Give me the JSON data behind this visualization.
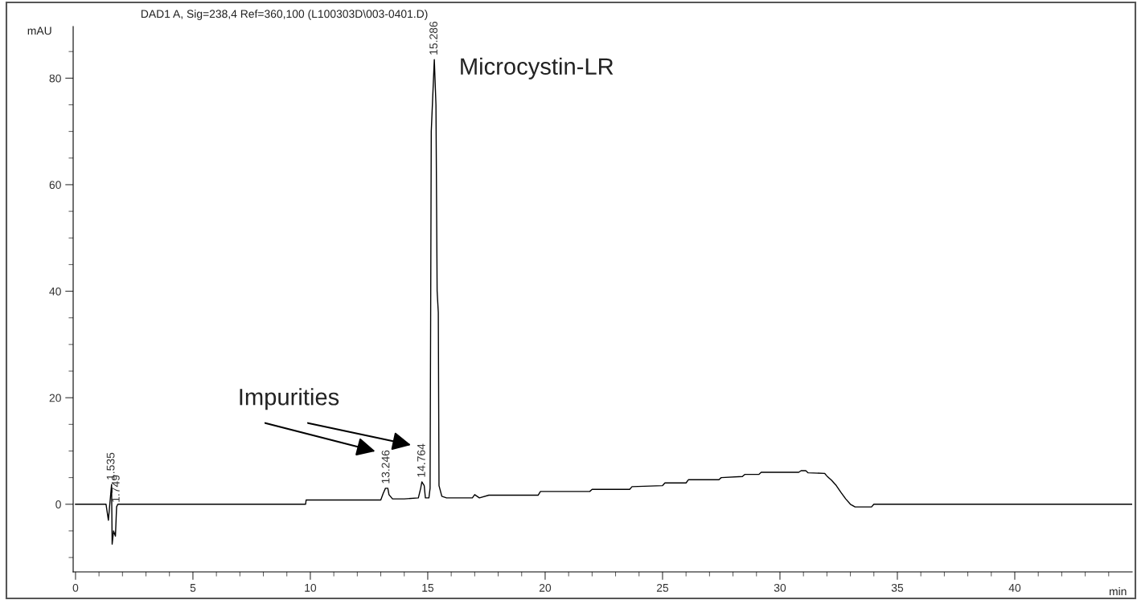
{
  "chart_data": {
    "type": "line",
    "title": "DAD1 A, Sig=238,4 Ref=360,100 (L100303D\\003-0401.D)",
    "xlabel": "min",
    "ylabel": "mAU",
    "x": [
      0,
      1.3,
      1.4,
      1.535,
      1.56,
      1.62,
      1.7,
      1.749,
      1.8,
      9.8,
      9.82,
      13.0,
      13.1,
      13.2,
      13.3,
      13.35,
      13.5,
      14.0,
      14.6,
      14.7,
      14.75,
      14.85,
      14.9,
      15.05,
      15.1,
      15.15,
      15.28,
      15.35,
      15.4,
      15.45,
      15.48,
      15.6,
      15.8,
      16.9,
      17.0,
      17.2,
      17.6,
      19.7,
      19.8,
      21.9,
      22.0,
      23.6,
      23.7,
      25.0,
      25.1,
      26.0,
      26.1,
      27.4,
      27.5,
      28.4,
      28.5,
      29.1,
      29.2,
      30.8,
      30.9,
      31.1,
      31.2,
      31.9,
      32.0,
      32.2,
      32.4,
      32.6,
      32.8,
      33.0,
      33.2,
      33.9,
      34.0,
      45
    ],
    "series": [
      {
        "color": "#000000",
        "values": [
          0,
          0,
          -3,
          3.7,
          -7.5,
          -5,
          -6,
          -0.5,
          0,
          0,
          0.8,
          0.8,
          2.0,
          3.0,
          3.0,
          1.8,
          1.0,
          1.0,
          1.2,
          3.0,
          4.2,
          3.5,
          1.2,
          1.2,
          3,
          70,
          83.5,
          75,
          40,
          36,
          3.5,
          1.5,
          1.2,
          1.2,
          1.8,
          1.2,
          1.7,
          1.7,
          2.4,
          2.4,
          2.8,
          2.8,
          3.3,
          3.5,
          4.0,
          4.0,
          4.6,
          4.6,
          5.0,
          5.2,
          5.6,
          5.6,
          6.0,
          6.0,
          6.3,
          6.3,
          5.9,
          5.8,
          5.3,
          4.5,
          3.5,
          2.2,
          1.0,
          0,
          -0.5,
          -0.5,
          0,
          0
        ]
      }
    ],
    "xlim": [
      -0.1,
      45
    ],
    "ylim": [
      -12.7,
      89.7
    ],
    "xticks": [
      0,
      {
        "value": 1,
        "label": null
      },
      {
        "value": 2,
        "label": null
      },
      {
        "value": 3,
        "label": null
      },
      {
        "value": 4,
        "label": null
      },
      5,
      {
        "value": 6,
        "label": null
      },
      {
        "value": 7,
        "label": null
      },
      {
        "value": 8,
        "label": null
      },
      {
        "value": 9,
        "label": null
      },
      10,
      {
        "value": 11,
        "label": null
      },
      {
        "value": 12,
        "label": null
      },
      {
        "value": 13,
        "label": null
      },
      {
        "value": 14,
        "label": null
      },
      15,
      {
        "value": 16,
        "label": null
      },
      {
        "value": 17,
        "label": null
      },
      {
        "value": 18,
        "label": null
      },
      {
        "value": 19,
        "label": null
      },
      20,
      {
        "value": 21,
        "label": null
      },
      {
        "value": 22,
        "label": null
      },
      {
        "value": 23,
        "label": null
      },
      {
        "value": 24,
        "label": null
      },
      25,
      {
        "value": 26,
        "label": null
      },
      {
        "value": 27,
        "label": null
      },
      {
        "value": 28,
        "label": null
      },
      {
        "value": 29,
        "label": null
      },
      30,
      {
        "value": 31,
        "label": null
      },
      {
        "value": 32,
        "label": null
      },
      {
        "value": 33,
        "label": null
      },
      {
        "value": 34,
        "label": null
      },
      35,
      {
        "value": 36,
        "label": null
      },
      {
        "value": 37,
        "label": null
      },
      {
        "value": 38,
        "label": null
      },
      {
        "value": 39,
        "label": null
      },
      40,
      {
        "value": 41,
        "label": null
      },
      {
        "value": 42,
        "label": null
      },
      {
        "value": 43,
        "label": null
      },
      {
        "value": 44,
        "label": null
      }
    ],
    "yticks": [
      {
        "value": -10,
        "label": null
      },
      {
        "value": -5,
        "label": null
      },
      0,
      {
        "value": 5,
        "label": null
      },
      {
        "value": 10,
        "label": null
      },
      {
        "value": 15,
        "label": null
      },
      20,
      {
        "value": 25,
        "label": null
      },
      {
        "value": 30,
        "label": null
      },
      {
        "value": 35,
        "label": null
      },
      40,
      {
        "value": 45,
        "label": null
      },
      {
        "value": 50,
        "label": null
      },
      {
        "value": 55,
        "label": null
      },
      60,
      {
        "value": 65,
        "label": null
      },
      {
        "value": 70,
        "label": null
      },
      {
        "value": 75,
        "label": null
      },
      80,
      {
        "value": 85,
        "label": null
      }
    ],
    "grid": false,
    "legend": false,
    "marker": "none",
    "line_style": "solid",
    "annotations": [
      {
        "text": "1.535",
        "x": 1.535,
        "y": 3.7
      },
      {
        "text": "1.749",
        "x": 1.749,
        "y": -0.5
      },
      {
        "text": "13.246",
        "x": 13.246,
        "y": 3.0
      },
      {
        "text": "14.764",
        "x": 14.764,
        "y": 4.2
      },
      {
        "text": "15.286",
        "x": 15.286,
        "y": 83.5
      },
      {
        "text": "Microcystin-LR",
        "x": 15.286,
        "y": 83.5
      },
      "Impurities"
    ]
  }
}
